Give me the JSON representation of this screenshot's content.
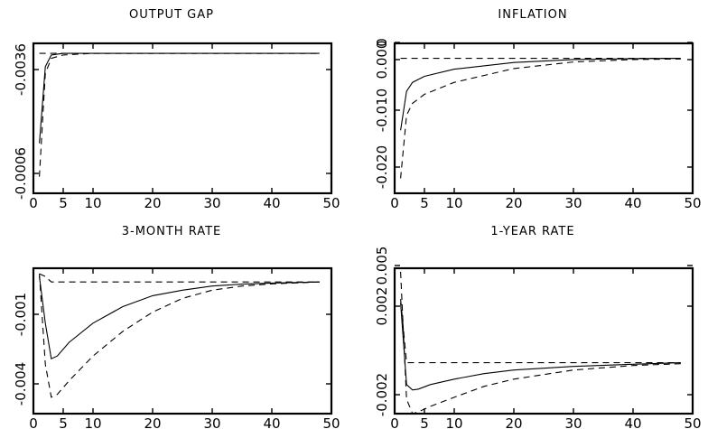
{
  "chart_data": [
    {
      "type": "line",
      "title": "OUTPUT GAP",
      "xlim": [
        0,
        50
      ],
      "ylim": [
        -0.0042,
        0.0003
      ],
      "x_ticks": [
        "0",
        "5",
        "10",
        "20",
        "30",
        "40",
        "50"
      ],
      "y_ticks": [
        "-0.0036",
        "-0.0006"
      ],
      "series": [
        {
          "style": "solid",
          "x": [
            1,
            2,
            3,
            5,
            10,
            20,
            30,
            48
          ],
          "y": [
            -0.0027,
            -0.0004,
            -5e-05,
            0,
            0,
            0,
            0,
            0
          ]
        },
        {
          "style": "dashed",
          "x": [
            1,
            2,
            3,
            5,
            10,
            20,
            30,
            48
          ],
          "y": [
            -0.0037,
            -0.0006,
            -0.00015,
            -5e-05,
            0,
            0,
            0,
            0
          ]
        },
        {
          "style": "dashed",
          "x": [
            1,
            48
          ],
          "y": [
            0,
            0
          ]
        }
      ]
    },
    {
      "type": "line",
      "title": "INFLATION",
      "xlim": [
        0,
        50
      ],
      "ylim": [
        -0.0225,
        0.0025
      ],
      "x_ticks": [
        "0",
        "5",
        "10",
        "20",
        "30",
        "40",
        "50"
      ],
      "y_ticks": [
        "0",
        "0.000",
        "-0.010",
        "-0.020"
      ],
      "series": [
        {
          "style": "solid",
          "x": [
            1,
            2,
            3,
            5,
            10,
            20,
            30,
            40,
            48
          ],
          "y": [
            -0.012,
            -0.0055,
            -0.004,
            -0.003,
            -0.0018,
            -0.0007,
            -0.0002,
            -5e-05,
            0
          ]
        },
        {
          "style": "dashed",
          "x": [
            1,
            2,
            3,
            5,
            10,
            20,
            30,
            40,
            48
          ],
          "y": [
            -0.02,
            -0.0095,
            -0.0075,
            -0.006,
            -0.004,
            -0.0017,
            -0.0006,
            -0.0002,
            -0.0001
          ]
        },
        {
          "style": "dashed",
          "x": [
            1,
            48
          ],
          "y": [
            0,
            0
          ]
        }
      ]
    },
    {
      "type": "line",
      "title": "3-MONTH RATE",
      "xlim": [
        0,
        50
      ],
      "ylim": [
        -0.0048,
        0.0005
      ],
      "x_ticks": [
        "0",
        "5",
        "10",
        "20",
        "30",
        "40",
        "50"
      ],
      "y_ticks": [
        "-0.001",
        "-0.004"
      ],
      "series": [
        {
          "style": "solid",
          "x": [
            1,
            2,
            3,
            4,
            6,
            10,
            15,
            20,
            25,
            30,
            35,
            40,
            48
          ],
          "y": [
            0.0002,
            -0.0015,
            -0.0028,
            -0.0027,
            -0.0022,
            -0.0015,
            -0.0009,
            -0.0005,
            -0.0003,
            -0.00015,
            -8e-05,
            -4e-05,
            0
          ]
        },
        {
          "style": "dashed",
          "x": [
            1,
            2,
            3,
            4,
            6,
            10,
            15,
            20,
            25,
            30,
            35,
            40,
            48
          ],
          "y": [
            0.0003,
            -0.003,
            -0.0042,
            -0.0041,
            -0.0036,
            -0.0027,
            -0.0018,
            -0.0011,
            -0.0006,
            -0.0003,
            -0.00015,
            -7e-05,
            0
          ]
        },
        {
          "style": "dashed",
          "x": [
            1,
            2,
            3,
            48
          ],
          "y": [
            0.0003,
            0.0002,
            0,
            0
          ]
        }
      ]
    },
    {
      "type": "line",
      "title": "1-YEAR RATE",
      "xlim": [
        0,
        50
      ],
      "ylim": [
        -0.0028,
        0.0052
      ],
      "x_ticks": [
        "0",
        "5",
        "10",
        "20",
        "30",
        "40",
        "50"
      ],
      "y_ticks": [
        "0.005",
        "0.002",
        "-0.002"
      ],
      "series": [
        {
          "style": "solid",
          "x": [
            1,
            2,
            3,
            4,
            6,
            10,
            15,
            20,
            30,
            40,
            48
          ],
          "y": [
            0.0033,
            -0.0012,
            -0.0015,
            -0.00145,
            -0.0012,
            -0.0009,
            -0.0006,
            -0.0004,
            -0.0002,
            -8e-05,
            0
          ]
        },
        {
          "style": "dashed",
          "x": [
            1,
            2,
            3,
            4,
            6,
            10,
            15,
            20,
            30,
            40,
            48
          ],
          "y": [
            0.005,
            -0.002,
            -0.0028,
            -0.0027,
            -0.0024,
            -0.0019,
            -0.0013,
            -0.0009,
            -0.0004,
            -0.00015,
            -5e-05
          ]
        },
        {
          "style": "dashed",
          "x": [
            1,
            2,
            48
          ],
          "y": [
            0.0035,
            0,
            0
          ]
        }
      ]
    }
  ]
}
